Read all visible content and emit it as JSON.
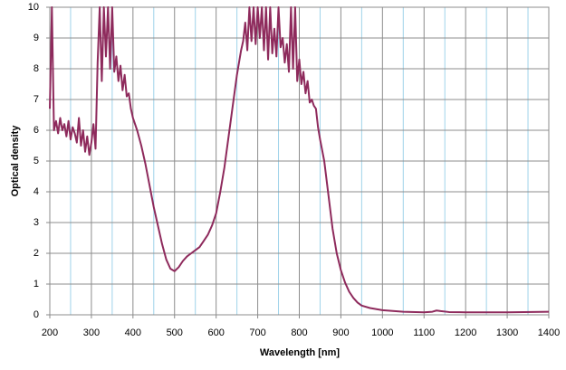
{
  "chart_data": {
    "type": "line",
    "x_label": "Wavelength [nm]",
    "y_label": "Optical density",
    "xlim": [
      200,
      1400
    ],
    "ylim": [
      0,
      10
    ],
    "xticks": [
      200,
      300,
      400,
      500,
      600,
      700,
      800,
      900,
      1000,
      1100,
      1200,
      1300,
      1400
    ],
    "xminorticks": [
      250,
      350,
      450,
      550,
      650,
      750,
      850,
      950,
      1050,
      1150,
      1250,
      1350
    ],
    "yticks": [
      0,
      1,
      2,
      3,
      4,
      5,
      6,
      7,
      8,
      9,
      10
    ],
    "grid": true,
    "x": [
      200,
      205,
      210,
      215,
      220,
      225,
      230,
      235,
      240,
      245,
      250,
      255,
      260,
      265,
      270,
      275,
      280,
      285,
      290,
      295,
      300,
      305,
      310,
      315,
      320,
      325,
      330,
      335,
      340,
      345,
      350,
      355,
      360,
      365,
      370,
      375,
      380,
      385,
      390,
      395,
      400,
      410,
      420,
      430,
      440,
      450,
      460,
      470,
      480,
      490,
      500,
      510,
      520,
      530,
      540,
      550,
      560,
      570,
      580,
      590,
      600,
      610,
      620,
      630,
      640,
      650,
      660,
      665,
      670,
      675,
      680,
      685,
      690,
      695,
      700,
      705,
      710,
      715,
      720,
      725,
      730,
      735,
      740,
      745,
      750,
      755,
      760,
      765,
      770,
      775,
      780,
      785,
      790,
      795,
      800,
      805,
      810,
      815,
      820,
      825,
      830,
      835,
      840,
      845,
      850,
      860,
      870,
      880,
      890,
      900,
      910,
      920,
      930,
      940,
      950,
      970,
      1000,
      1050,
      1100,
      1120,
      1130,
      1140,
      1160,
      1200,
      1300,
      1400
    ],
    "series": [
      {
        "name": "Optical density",
        "color": "#8e2a5c",
        "values": [
          6.7,
          10,
          6.0,
          6.3,
          5.9,
          6.4,
          6.0,
          6.2,
          5.8,
          6.3,
          5.7,
          6.1,
          5.9,
          5.6,
          6.4,
          5.5,
          6.0,
          5.3,
          5.8,
          5.2,
          5.6,
          6.2,
          5.4,
          8.2,
          10,
          7.6,
          10,
          8.4,
          10,
          8.0,
          10,
          7.9,
          8.4,
          7.6,
          8.1,
          7.3,
          7.8,
          7.1,
          7.2,
          6.7,
          6.4,
          6.0,
          5.5,
          4.9,
          4.2,
          3.5,
          2.9,
          2.3,
          1.8,
          1.5,
          1.42,
          1.55,
          1.75,
          1.9,
          2.0,
          2.1,
          2.2,
          2.4,
          2.6,
          2.9,
          3.3,
          4.0,
          4.8,
          5.8,
          6.8,
          7.8,
          8.6,
          8.9,
          9.5,
          8.6,
          10,
          8.9,
          10,
          8.8,
          10,
          9.0,
          10,
          8.6,
          10,
          8.3,
          10,
          8.5,
          9.3,
          8.4,
          10,
          8.7,
          9.0,
          8.2,
          8.8,
          7.9,
          10,
          8.0,
          10,
          7.6,
          8.3,
          7.5,
          7.9,
          7.2,
          7.6,
          6.9,
          7.0,
          6.8,
          6.7,
          6.1,
          5.7,
          5.0,
          3.9,
          2.8,
          2.0,
          1.45,
          1.05,
          0.75,
          0.55,
          0.4,
          0.3,
          0.22,
          0.15,
          0.1,
          0.08,
          0.1,
          0.14,
          0.12,
          0.09,
          0.08,
          0.08,
          0.1
        ]
      }
    ]
  }
}
